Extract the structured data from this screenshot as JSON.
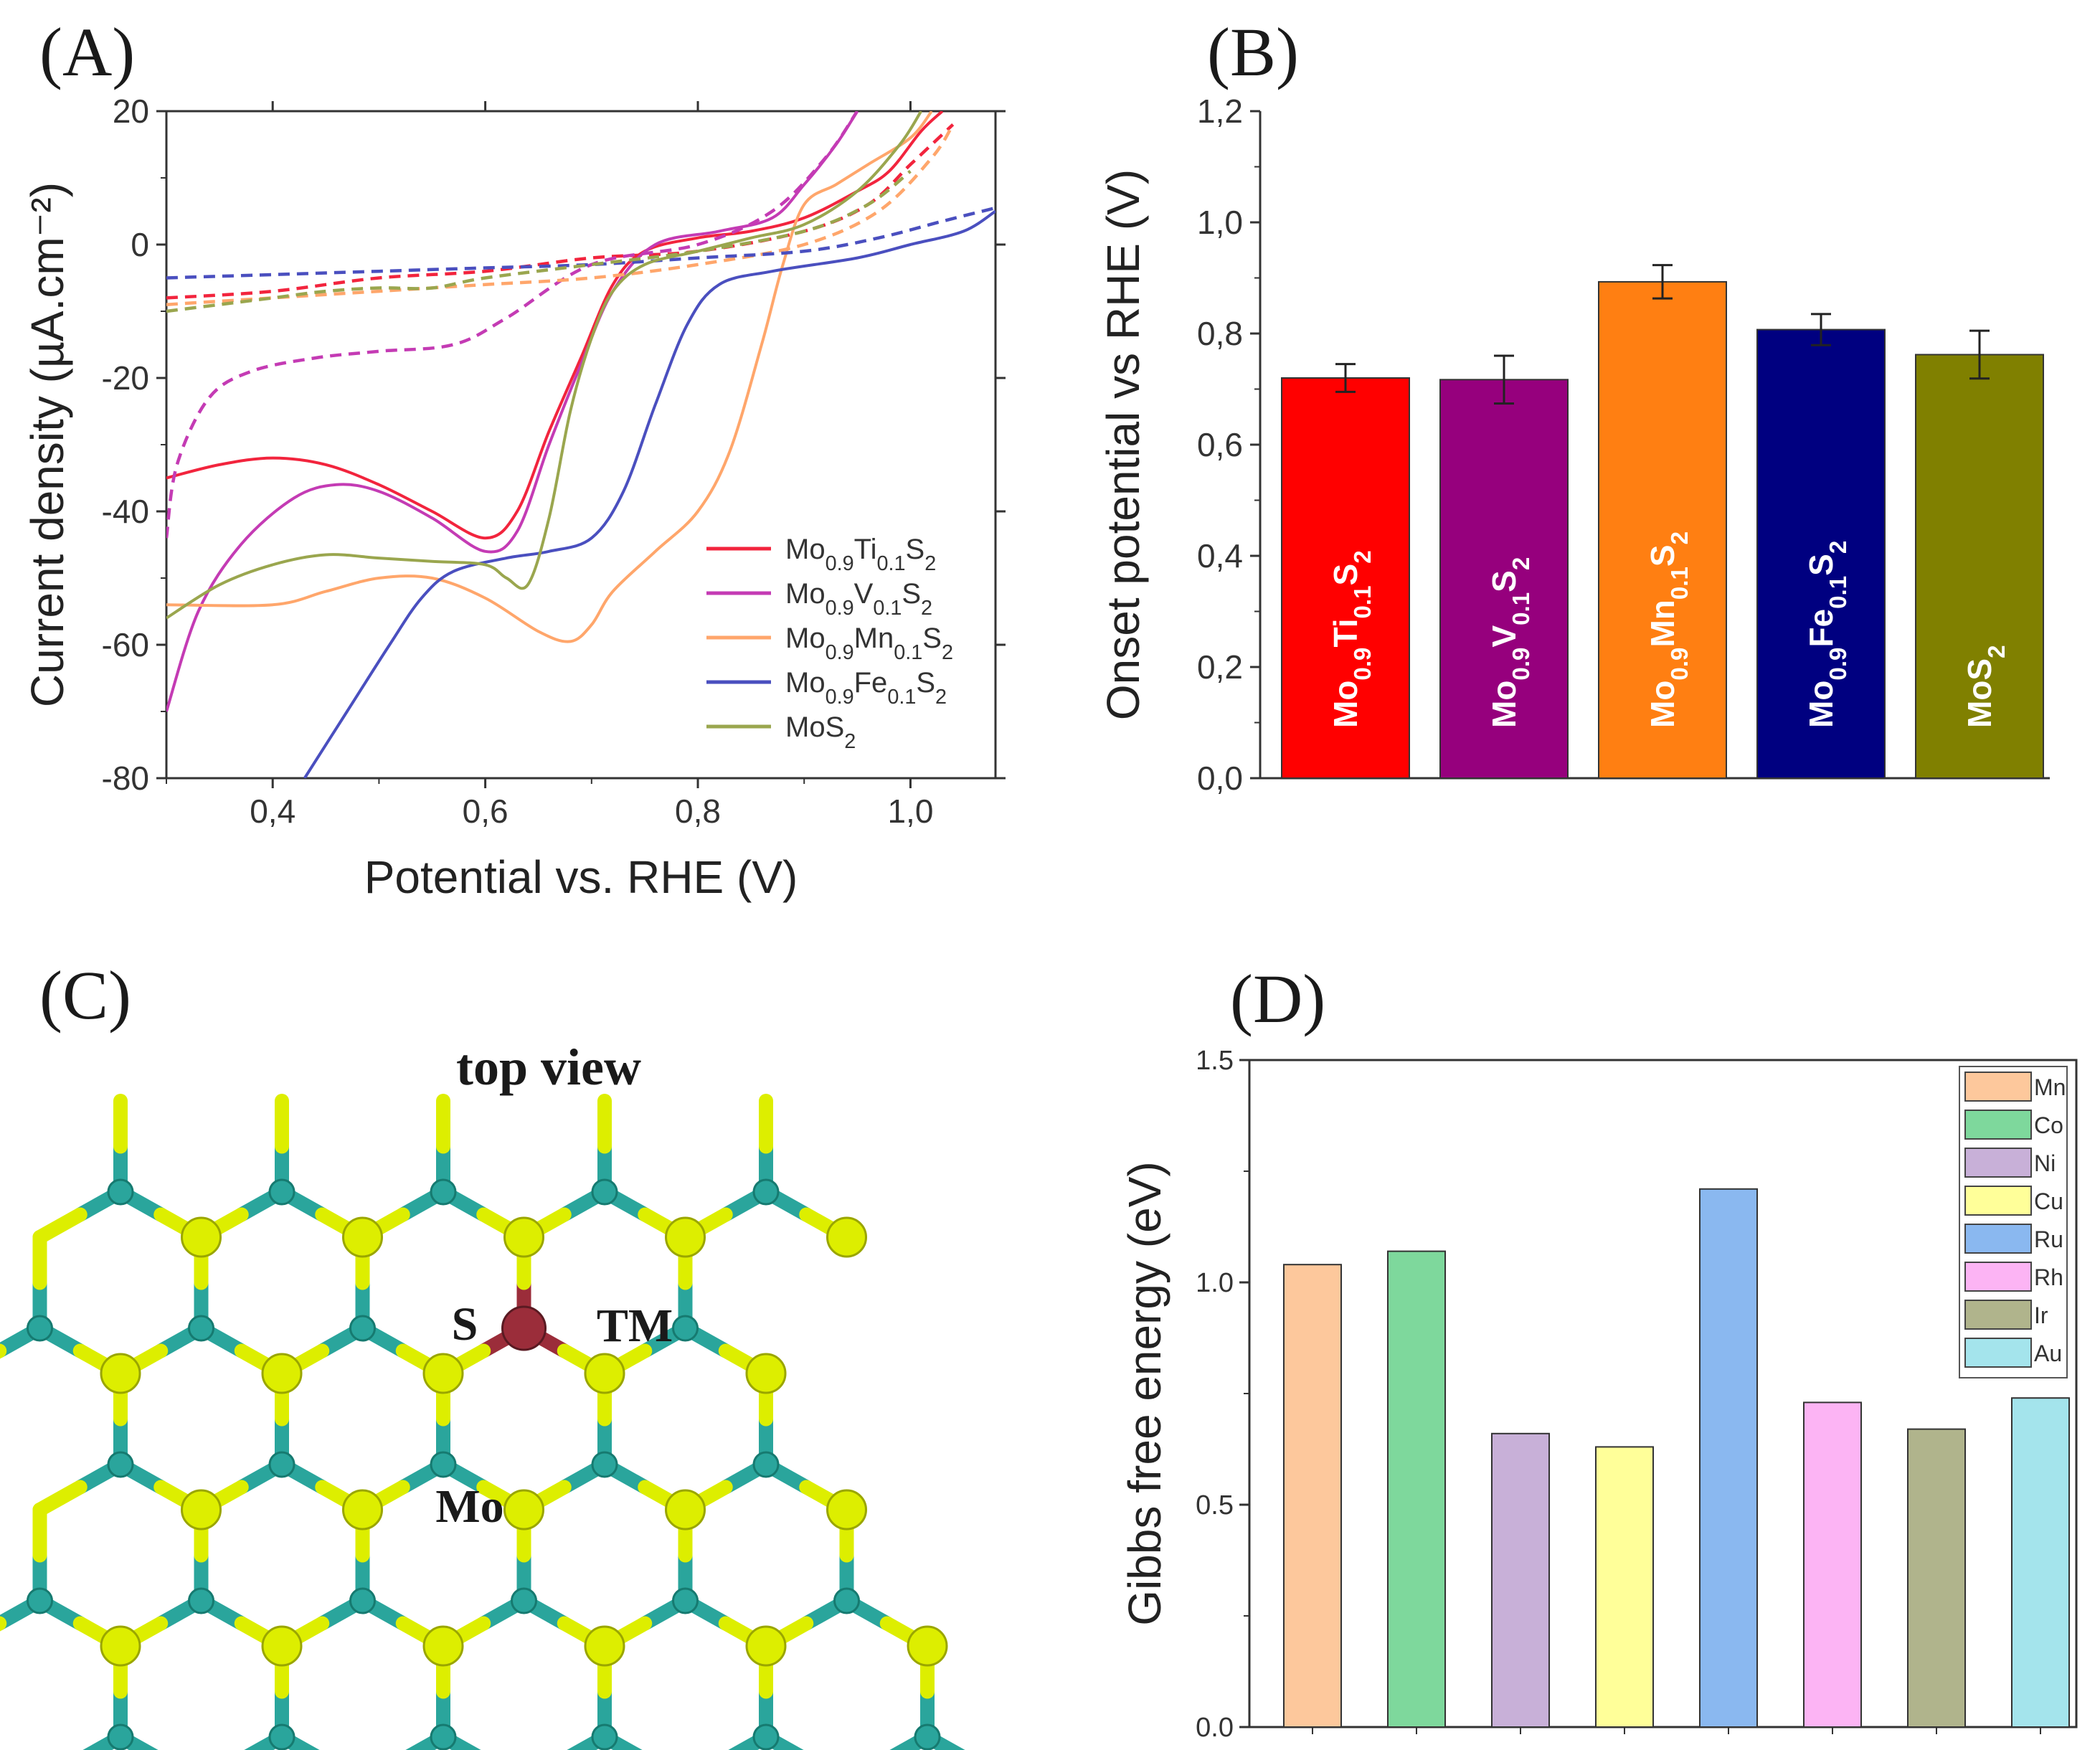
{
  "panels": {
    "A": "(A)",
    "B": "(B)",
    "C": "(C)",
    "D": "(D)"
  },
  "chart_data": [
    {
      "id": "A",
      "type": "line",
      "xlabel": "Potential vs. RHE (V)",
      "ylabel": "Current density (µA.cm⁻²)",
      "xlim": [
        0.3,
        1.08
      ],
      "ylim": [
        -80,
        20
      ],
      "xticks": [
        0.4,
        0.6,
        0.8,
        1.0
      ],
      "xtick_labels": [
        "0,4",
        "0,6",
        "0,8",
        "1,0"
      ],
      "yticks": [
        20,
        0,
        -20,
        -40,
        -60,
        -80
      ],
      "ytick_labels": [
        "20",
        "0",
        "-20",
        "-40",
        "-60",
        "-80"
      ],
      "legend_position": "bottom-right",
      "series": [
        {
          "name": "Mo0.9Ti0.1S2",
          "label_parts": [
            [
              "Mo",
              ""
            ],
            [
              "0.9",
              "sub"
            ],
            [
              "Ti",
              ""
            ],
            [
              "0.1",
              "sub"
            ],
            [
              "S",
              ""
            ],
            [
              "2",
              "sub"
            ]
          ],
          "color": "#f2243d",
          "solid": [
            [
              0.3,
              -35
            ],
            [
              0.35,
              -33
            ],
            [
              0.4,
              -32
            ],
            [
              0.45,
              -33
            ],
            [
              0.5,
              -36
            ],
            [
              0.55,
              -40
            ],
            [
              0.6,
              -44
            ],
            [
              0.63,
              -40
            ],
            [
              0.66,
              -28
            ],
            [
              0.69,
              -17
            ],
            [
              0.72,
              -6
            ],
            [
              0.75,
              -1
            ],
            [
              0.8,
              1
            ],
            [
              0.85,
              2
            ],
            [
              0.9,
              4
            ],
            [
              0.95,
              8
            ],
            [
              0.98,
              11
            ],
            [
              1.01,
              17
            ],
            [
              1.03,
              20
            ]
          ],
          "dashed": [
            [
              0.3,
              -8
            ],
            [
              0.4,
              -7
            ],
            [
              0.5,
              -5
            ],
            [
              0.6,
              -4
            ],
            [
              0.7,
              -2
            ],
            [
              0.8,
              -1
            ],
            [
              0.9,
              2
            ],
            [
              0.96,
              6
            ],
            [
              1.0,
              12
            ],
            [
              1.04,
              18
            ]
          ]
        },
        {
          "name": "Mo0.9V0.1S2",
          "label_parts": [
            [
              "Mo",
              ""
            ],
            [
              "0.9",
              "sub"
            ],
            [
              "V",
              ""
            ],
            [
              "0.1",
              "sub"
            ],
            [
              "S",
              ""
            ],
            [
              "2",
              "sub"
            ]
          ],
          "color": "#c43bb4",
          "solid": [
            [
              0.3,
              -70
            ],
            [
              0.33,
              -55
            ],
            [
              0.37,
              -45
            ],
            [
              0.42,
              -38
            ],
            [
              0.46,
              -36
            ],
            [
              0.5,
              -37
            ],
            [
              0.55,
              -41
            ],
            [
              0.6,
              -46
            ],
            [
              0.63,
              -43
            ],
            [
              0.66,
              -30
            ],
            [
              0.69,
              -18
            ],
            [
              0.72,
              -7
            ],
            [
              0.76,
              0
            ],
            [
              0.82,
              2
            ],
            [
              0.87,
              4
            ],
            [
              0.9,
              9
            ],
            [
              0.93,
              15
            ],
            [
              0.95,
              20
            ]
          ],
          "dashed": [
            [
              0.3,
              -44
            ],
            [
              0.31,
              -33
            ],
            [
              0.34,
              -23
            ],
            [
              0.38,
              -19
            ],
            [
              0.44,
              -17
            ],
            [
              0.5,
              -16
            ],
            [
              0.57,
              -15
            ],
            [
              0.62,
              -11
            ],
            [
              0.7,
              -3
            ],
            [
              0.8,
              0
            ],
            [
              0.87,
              5
            ],
            [
              0.92,
              13
            ],
            [
              0.95,
              20
            ]
          ]
        },
        {
          "name": "Mo0.9Mn0.1S2",
          "label_parts": [
            [
              "Mo",
              ""
            ],
            [
              "0.9",
              "sub"
            ],
            [
              "Mn",
              ""
            ],
            [
              "0.1",
              "sub"
            ],
            [
              "S",
              ""
            ],
            [
              "2",
              "sub"
            ]
          ],
          "color": "#ffa66b",
          "solid": [
            [
              0.3,
              -54
            ],
            [
              0.4,
              -54
            ],
            [
              0.45,
              -52
            ],
            [
              0.5,
              -50
            ],
            [
              0.55,
              -50
            ],
            [
              0.6,
              -53
            ],
            [
              0.65,
              -58
            ],
            [
              0.68,
              -59.5
            ],
            [
              0.7,
              -57
            ],
            [
              0.72,
              -52
            ],
            [
              0.76,
              -46
            ],
            [
              0.8,
              -40
            ],
            [
              0.83,
              -31
            ],
            [
              0.86,
              -15
            ],
            [
              0.88,
              -3
            ],
            [
              0.9,
              6
            ],
            [
              0.93,
              9
            ],
            [
              0.96,
              12
            ],
            [
              1.0,
              16
            ],
            [
              1.02,
              20
            ]
          ],
          "dashed": [
            [
              0.3,
              -9
            ],
            [
              0.4,
              -8
            ],
            [
              0.5,
              -7
            ],
            [
              0.6,
              -6
            ],
            [
              0.7,
              -5
            ],
            [
              0.8,
              -3
            ],
            [
              0.9,
              0
            ],
            [
              0.97,
              5
            ],
            [
              1.02,
              13
            ],
            [
              1.04,
              18
            ]
          ]
        },
        {
          "name": "Mo0.9Fe0.1S2",
          "label_parts": [
            [
              "Mo",
              ""
            ],
            [
              "0.9",
              "sub"
            ],
            [
              "Fe",
              ""
            ],
            [
              "0.1",
              "sub"
            ],
            [
              "S",
              ""
            ],
            [
              "2",
              "sub"
            ]
          ],
          "color": "#4a4fbf",
          "solid": [
            [
              0.43,
              -80
            ],
            [
              0.47,
              -70
            ],
            [
              0.51,
              -60
            ],
            [
              0.54,
              -53
            ],
            [
              0.57,
              -49
            ],
            [
              0.62,
              -47
            ],
            [
              0.66,
              -46
            ],
            [
              0.7,
              -44
            ],
            [
              0.73,
              -37
            ],
            [
              0.76,
              -24
            ],
            [
              0.79,
              -12
            ],
            [
              0.82,
              -6
            ],
            [
              0.87,
              -4
            ],
            [
              0.95,
              -2
            ],
            [
              1.0,
              0
            ],
            [
              1.05,
              2
            ],
            [
              1.08,
              5
            ]
          ],
          "dashed": [
            [
              0.3,
              -5
            ],
            [
              0.4,
              -4.5
            ],
            [
              0.5,
              -4
            ],
            [
              0.6,
              -3.5
            ],
            [
              0.7,
              -3
            ],
            [
              0.8,
              -2
            ],
            [
              0.9,
              -1
            ],
            [
              0.97,
              1
            ],
            [
              1.03,
              3.5
            ],
            [
              1.08,
              5.5
            ]
          ]
        },
        {
          "name": "MoS2",
          "label_parts": [
            [
              "MoS",
              ""
            ],
            [
              "2",
              "sub"
            ]
          ],
          "color": "#9aa64e",
          "solid": [
            [
              0.3,
              -56
            ],
            [
              0.35,
              -51
            ],
            [
              0.4,
              -48
            ],
            [
              0.45,
              -46.5
            ],
            [
              0.5,
              -47
            ],
            [
              0.55,
              -47.5
            ],
            [
              0.6,
              -48
            ],
            [
              0.62,
              -50
            ],
            [
              0.64,
              -51
            ],
            [
              0.66,
              -41
            ],
            [
              0.68,
              -25
            ],
            [
              0.7,
              -14
            ],
            [
              0.72,
              -7
            ],
            [
              0.75,
              -3
            ],
            [
              0.8,
              -1
            ],
            [
              0.85,
              1
            ],
            [
              0.9,
              3
            ],
            [
              0.95,
              8
            ],
            [
              0.99,
              15
            ],
            [
              1.01,
              20
            ]
          ],
          "dashed": [
            [
              0.3,
              -10
            ],
            [
              0.35,
              -9
            ],
            [
              0.4,
              -8
            ],
            [
              0.45,
              -7
            ],
            [
              0.5,
              -6.5
            ],
            [
              0.55,
              -6.5
            ],
            [
              0.6,
              -5
            ],
            [
              0.7,
              -3
            ],
            [
              0.8,
              -1
            ],
            [
              0.9,
              2
            ],
            [
              0.96,
              6
            ],
            [
              1.0,
              11
            ]
          ]
        }
      ]
    },
    {
      "id": "B",
      "type": "bar",
      "ylabel": "Onset potential vs RHE (V)",
      "ylim": [
        0.0,
        1.2
      ],
      "yticks": [
        0.0,
        0.2,
        0.4,
        0.6,
        0.8,
        1.0,
        1.2
      ],
      "ytick_labels": [
        "0,0",
        "0,2",
        "0,4",
        "0,6",
        "0,8",
        "1,0",
        "1,2"
      ],
      "categories": [
        "Mo0.9Ti0.1S2",
        "Mo0.9V0.1S2",
        "Mo0.9Mn0.1S2",
        "Mo0.9Fe0.1S2",
        "MoS2"
      ],
      "category_parts": [
        [
          [
            "Mo",
            ""
          ],
          [
            "0.9",
            "sub"
          ],
          [
            "Ti",
            ""
          ],
          [
            "0.1",
            "sub"
          ],
          [
            "S",
            ""
          ],
          [
            "2",
            "sub"
          ]
        ],
        [
          [
            "Mo",
            ""
          ],
          [
            "0.9",
            "sub"
          ],
          [
            "V",
            ""
          ],
          [
            "0.1",
            "sub"
          ],
          [
            "S",
            ""
          ],
          [
            "2",
            "sub"
          ]
        ],
        [
          [
            "Mo",
            ""
          ],
          [
            "0.9",
            "sub"
          ],
          [
            "Mn",
            ""
          ],
          [
            "0.1",
            "sub"
          ],
          [
            "S",
            ""
          ],
          [
            "2",
            "sub"
          ]
        ],
        [
          [
            "Mo",
            ""
          ],
          [
            "0.9",
            "sub"
          ],
          [
            "Fe",
            ""
          ],
          [
            "0.1",
            "sub"
          ],
          [
            "S",
            ""
          ],
          [
            "2",
            "sub"
          ]
        ],
        [
          [
            "MoS",
            ""
          ],
          [
            "2",
            "sub"
          ]
        ]
      ],
      "values": [
        0.72,
        0.717,
        0.893,
        0.807,
        0.762
      ],
      "errors": [
        0.025,
        0.043,
        0.03,
        0.028,
        0.043
      ],
      "colors": [
        "#ff0000",
        "#96007d",
        "#ff7f12",
        "#000080",
        "#808000"
      ]
    },
    {
      "id": "D",
      "type": "bar",
      "ylabel": "Gibbs free energy (eV)",
      "ylim": [
        0.0,
        1.5
      ],
      "yticks": [
        0.0,
        0.5,
        1.0,
        1.5
      ],
      "ytick_labels": [
        "0.0",
        "0.5",
        "1.0",
        "1.5"
      ],
      "categories": [
        "Mn",
        "Co",
        "Ni",
        "Cu",
        "Ru",
        "Rh",
        "Ir",
        "Au"
      ],
      "values": [
        1.04,
        1.07,
        0.66,
        0.63,
        1.21,
        0.73,
        0.67,
        0.74
      ],
      "colors": [
        "#fdc89c",
        "#7ed89c",
        "#c8b0d8",
        "#ffff99",
        "#8ab8f0",
        "#fcb4f4",
        "#b0b48c",
        "#a4e4ec"
      ],
      "legend_position": "top-right"
    }
  ],
  "structure": {
    "title": "top view",
    "labels": {
      "s": "S",
      "tm": "TM",
      "mo": "Mo"
    },
    "colors": {
      "mo": "#2aa59c",
      "s": "#ddee00",
      "tm": "#9b2d3a"
    }
  }
}
